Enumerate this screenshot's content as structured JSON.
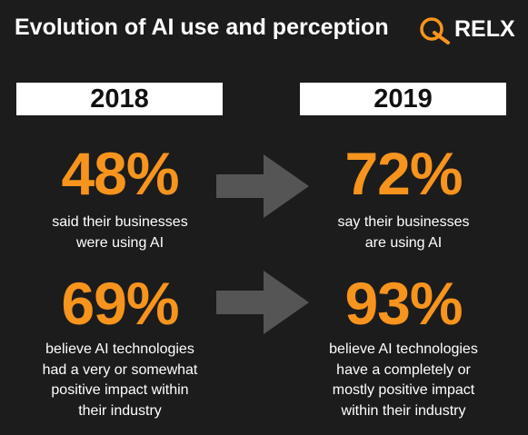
{
  "header": {
    "title": "Evolution of AI use and perception",
    "brand": "RELX"
  },
  "columns": [
    {
      "year": "2018",
      "stats": [
        {
          "figure": "48%",
          "lines": [
            "said their businesses",
            "were using AI"
          ]
        },
        {
          "figure": "69%",
          "lines": [
            "believe AI technologies",
            "had a very or somewhat",
            "positive impact within",
            "their industry"
          ]
        }
      ]
    },
    {
      "year": "2019",
      "stats": [
        {
          "figure": "72%",
          "lines": [
            "say their businesses",
            "are using AI"
          ]
        },
        {
          "figure": "93%",
          "lines": [
            "believe AI technologies",
            "have a completely or",
            "mostly positive impact",
            "within their industry"
          ]
        }
      ]
    }
  ]
}
